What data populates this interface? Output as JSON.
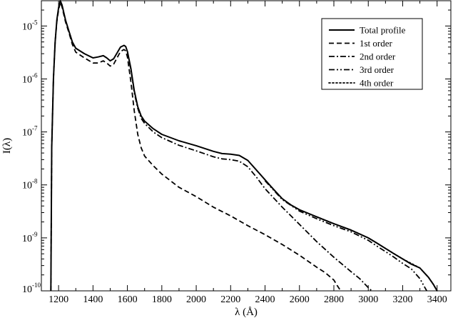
{
  "chart_data": {
    "type": "line",
    "title": "",
    "xlabel": "λ  (Å)",
    "ylabel": "I(λ)",
    "x_ticks": [
      1200,
      1400,
      1600,
      1800,
      2000,
      2200,
      2400,
      2600,
      2800,
      3000,
      3200,
      3400
    ],
    "xlim": [
      1100,
      3480
    ],
    "ylim": [
      1e-10,
      3e-05
    ],
    "y_scale": "log",
    "y_ticks": [
      {
        "base": "10",
        "exp": "-10",
        "value": 1e-10
      },
      {
        "base": "10",
        "exp": "-9",
        "value": 1e-09
      },
      {
        "base": "10",
        "exp": "-8",
        "value": 1e-08
      },
      {
        "base": "10",
        "exp": "-7",
        "value": 1e-07
      },
      {
        "base": "10",
        "exp": "-6",
        "value": 1e-06
      },
      {
        "base": "10",
        "exp": "-5",
        "value": 1e-05
      }
    ],
    "grid": false,
    "legend_position": "top-right",
    "series": [
      {
        "name": "Total profile",
        "style": "solid",
        "x": [
          1155,
          1160,
          1170,
          1180,
          1190,
          1200,
          1210,
          1220,
          1240,
          1260,
          1280,
          1300,
          1350,
          1400,
          1430,
          1460,
          1480,
          1500,
          1520,
          1540,
          1560,
          1580,
          1590,
          1600,
          1620,
          1640,
          1660,
          1680,
          1700,
          1750,
          1800,
          1900,
          2000,
          2100,
          2150,
          2200,
          2250,
          2300,
          2350,
          2400,
          2450,
          2500,
          2550,
          2600,
          2700,
          2800,
          2900,
          3000,
          3050,
          3100,
          3150,
          3200,
          3250,
          3300,
          3350,
          3380,
          3400
        ],
        "y": [
          1e-10,
          5e-08,
          1e-06,
          5e-06,
          1.3e-05,
          2.2e-05,
          3e-05,
          2.5e-05,
          1.3e-05,
          8e-06,
          5e-06,
          3.8e-06,
          3e-06,
          2.5e-06,
          2.6e-06,
          2.75e-06,
          2.5e-06,
          2.2e-06,
          2.4e-06,
          3.1e-06,
          4e-06,
          4.3e-06,
          4.1e-06,
          3.3e-06,
          1.6e-06,
          6e-07,
          3e-07,
          2e-07,
          1.6e-07,
          1.15e-07,
          9e-08,
          6.8e-08,
          5.5e-08,
          4.3e-08,
          3.9e-08,
          3.8e-08,
          3.6e-08,
          2.9e-08,
          1.9e-08,
          1.25e-08,
          8.2e-09,
          5.5e-09,
          4.2e-09,
          3.4e-09,
          2.5e-09,
          1.85e-09,
          1.4e-09,
          1e-09,
          8e-10,
          6.3e-10,
          5e-10,
          4e-10,
          3.2e-10,
          2.7e-10,
          1.8e-10,
          1.3e-10,
          1e-10
        ]
      },
      {
        "name": "1st order",
        "style": "dashed",
        "x": [
          1155,
          1160,
          1170,
          1180,
          1190,
          1200,
          1210,
          1220,
          1240,
          1260,
          1280,
          1300,
          1350,
          1400,
          1430,
          1460,
          1480,
          1500,
          1520,
          1540,
          1560,
          1580,
          1590,
          1600,
          1620,
          1640,
          1660,
          1680,
          1700,
          1750,
          1800,
          1900,
          2000,
          2100,
          2200,
          2300,
          2400,
          2500,
          2600,
          2700,
          2750,
          2800,
          2820,
          2840
        ],
        "y": [
          1e-10,
          5e-08,
          1e-06,
          5e-06,
          1.2e-05,
          2e-05,
          2.8e-05,
          2.3e-05,
          1.2e-05,
          7.5e-06,
          4.5e-06,
          3.2e-06,
          2.5e-06,
          2e-06,
          2e-06,
          2.2e-06,
          2e-06,
          1.75e-06,
          1.9e-06,
          2.5e-06,
          3.3e-06,
          3.6e-06,
          3.4e-06,
          2.6e-06,
          9e-07,
          2.5e-07,
          9e-08,
          5e-08,
          3.5e-08,
          2.3e-08,
          1.6e-08,
          9e-09,
          6e-09,
          3.8e-09,
          2.6e-09,
          1.7e-09,
          1.15e-09,
          7.5e-10,
          4.7e-10,
          2.8e-10,
          2.2e-10,
          1.6e-10,
          1.25e-10,
          1e-10
        ]
      },
      {
        "name": "2nd order",
        "style": "dashdot",
        "x": [
          1600,
          1620,
          1640,
          1660,
          1680,
          1700,
          1750,
          1800,
          1900,
          2000,
          2100,
          2150,
          2200,
          2250,
          2300,
          2350,
          2400,
          2500,
          2600,
          2700,
          2800,
          2900,
          2950,
          3000,
          3020
        ],
        "y": [
          3.3e-06,
          1.5e-06,
          5.5e-07,
          2.8e-07,
          1.8e-07,
          1.45e-07,
          1e-07,
          7.8e-08,
          5.6e-08,
          4.4e-08,
          3.4e-08,
          3.1e-08,
          3e-08,
          2.8e-08,
          2.2e-08,
          1.4e-08,
          8.5e-09,
          3.8e-09,
          1.8e-09,
          8.5e-10,
          4.3e-10,
          2.3e-10,
          1.7e-10,
          1.15e-10,
          1e-10
        ]
      },
      {
        "name": "3rd order",
        "style": "dashdotdot",
        "x": [
          2400,
          2500,
          2600,
          2700,
          2800,
          2900,
          3000,
          3050,
          3100,
          3150,
          3200,
          3250,
          3300,
          3320,
          3340
        ],
        "y": [
          1.2e-08,
          5.3e-09,
          3.2e-09,
          2.3e-09,
          1.7e-09,
          1.3e-09,
          9e-10,
          7e-10,
          5.5e-10,
          4.3e-10,
          3.3e-10,
          2.6e-10,
          1.7e-10,
          1.3e-10,
          1e-10
        ]
      },
      {
        "name": "4th order",
        "style": "dotted",
        "x": [
          2700,
          2800,
          2900,
          3000,
          3100,
          3200,
          3300,
          3350,
          3380,
          3400
        ],
        "y": [
          2.5e-09,
          1.85e-09,
          1.4e-09,
          1e-09,
          6.3e-10,
          4e-10,
          2.7e-10,
          1.8e-10,
          1.3e-10,
          1e-10
        ]
      }
    ]
  }
}
